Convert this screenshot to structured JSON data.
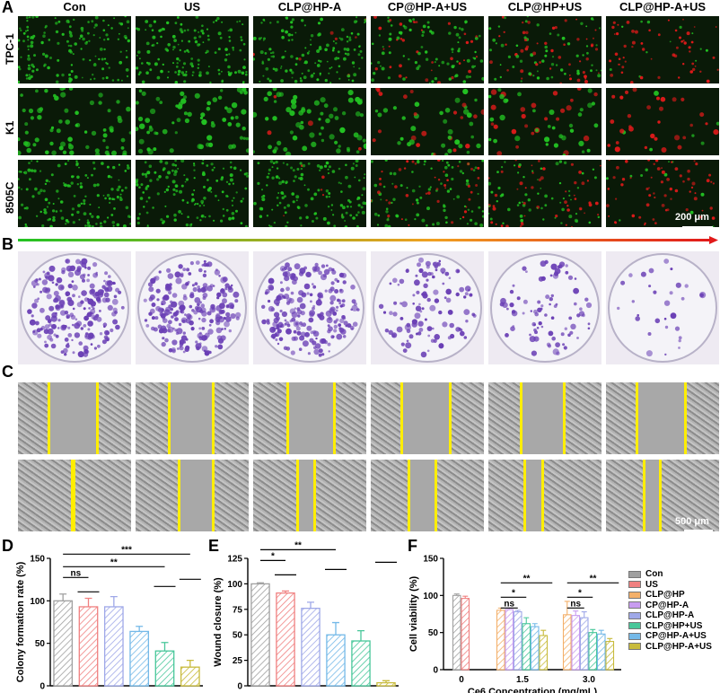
{
  "panels": {
    "a": "A",
    "b": "B",
    "c": "C",
    "d": "D",
    "e": "E",
    "f": "F"
  },
  "column_labels": [
    "Con",
    "US",
    "CLP@HP-A",
    "CP@HP-A+US",
    "CLP@HP+US",
    "CLP@HP-A+US"
  ],
  "row_labels": [
    "TPC-1",
    "K1",
    "8505C"
  ],
  "scale_bar_a": "200 μm",
  "scale_bar_c": "500 μm",
  "live_dead_level": [
    0.0,
    0.0,
    0.05,
    0.3,
    0.4,
    0.85
  ],
  "colors": {
    "live": "#22c222",
    "dead": "#e11a1a",
    "crystal_violet": "#6a3fb5",
    "wound_line": "#ffee00"
  },
  "chart_data": [
    {
      "type": "bar",
      "panel": "D",
      "ylabel": "Colony formation rate (%)",
      "ylim": [
        0,
        150
      ],
      "yticks": [
        0,
        50,
        100,
        150
      ],
      "values": [
        100,
        93,
        93,
        64,
        41,
        22
      ],
      "errors": [
        8,
        10,
        12,
        6,
        10,
        8
      ],
      "significance": [
        {
          "from": 0,
          "to": 1,
          "label": "ns"
        },
        {
          "from": 0,
          "to": 4,
          "label": "**"
        },
        {
          "from": 0,
          "to": 5,
          "label": "***"
        }
      ]
    },
    {
      "type": "bar",
      "panel": "E",
      "ylabel": "Wound closure (%)",
      "ylim": [
        0,
        125
      ],
      "yticks": [
        0,
        25,
        50,
        75,
        100,
        125
      ],
      "values": [
        100,
        91,
        76,
        50,
        44,
        3
      ],
      "errors": [
        1,
        2,
        6,
        12,
        10,
        2
      ],
      "significance": [
        {
          "from": 0,
          "to": 1,
          "label": "*"
        },
        {
          "from": 0,
          "to": 3,
          "label": "**"
        },
        {
          "from": 0,
          "to": 5,
          "label": "***"
        }
      ]
    },
    {
      "type": "bar",
      "panel": "F",
      "ylabel": "Cell viability (%)",
      "xlabel": "Ce6 Concentration (mg/mL)",
      "ylim": [
        0,
        150
      ],
      "yticks": [
        0,
        50,
        100,
        150
      ],
      "categories": [
        "0",
        "1.5",
        "3.0"
      ],
      "series": [
        {
          "name": "Con",
          "values": [
            100,
            null,
            null
          ],
          "errors": [
            2,
            null,
            null
          ]
        },
        {
          "name": "US",
          "values": [
            96,
            null,
            null
          ],
          "errors": [
            3,
            null,
            null
          ]
        },
        {
          "name": "CLP@HP",
          "values": [
            null,
            80,
            74
          ],
          "errors": [
            null,
            3,
            18
          ]
        },
        {
          "name": "CP@HP-A",
          "values": [
            null,
            81,
            73
          ],
          "errors": [
            null,
            2,
            6
          ]
        },
        {
          "name": "CLP@HP-A",
          "values": [
            null,
            78,
            70
          ],
          "errors": [
            null,
            2,
            8
          ]
        },
        {
          "name": "CLP@HP+US",
          "values": [
            null,
            62,
            50
          ],
          "errors": [
            null,
            8,
            4
          ]
        },
        {
          "name": "CP@HP-A+US",
          "values": [
            null,
            58,
            48
          ],
          "errors": [
            null,
            4,
            5
          ]
        },
        {
          "name": "CLP@HP-A+US",
          "values": [
            null,
            46,
            38
          ],
          "errors": [
            null,
            7,
            4
          ]
        }
      ],
      "series_colors": [
        "#a0a0a0",
        "#f08080",
        "#f4b06a",
        "#c89cf0",
        "#9fa8e8",
        "#48c79a",
        "#74b9e8",
        "#c8bb3c"
      ],
      "significance": [
        {
          "group": 1,
          "from": 0,
          "to": 2,
          "label": "ns"
        },
        {
          "group": 1,
          "from": 0,
          "to": 3,
          "label": "*"
        },
        {
          "group": 1,
          "from": 0,
          "to": 5,
          "label": "**"
        },
        {
          "group": 2,
          "from": 0,
          "to": 2,
          "label": "ns"
        },
        {
          "group": 2,
          "from": 0,
          "to": 3,
          "label": "*"
        },
        {
          "group": 2,
          "from": 0,
          "to": 5,
          "label": "**"
        }
      ]
    }
  ],
  "bar_colors_de": [
    "#a0a0a0",
    "#f08080",
    "#9fa8e8",
    "#74b9e8",
    "#48c79a",
    "#c8bb3c"
  ],
  "legend": [
    "Con",
    "US",
    "CLP@HP",
    "CP@HP-A",
    "CLP@HP-A",
    "CLP@HP+US",
    "CP@HP-A+US",
    "CLP@HP-A+US"
  ]
}
